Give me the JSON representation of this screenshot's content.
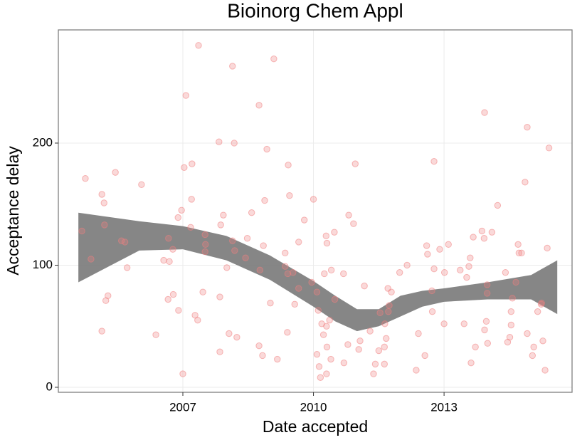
{
  "chart_data": {
    "type": "scatter",
    "title": "Bioinorg Chem Appl",
    "xlabel": "Date accepted",
    "ylabel": "Acceptance delay",
    "xlim": [
      2004.14,
      2015.94
    ],
    "ylim": [
      -4.1,
      292.7
    ],
    "xticks": [
      2007,
      2010,
      2013
    ],
    "yticks": [
      0,
      100,
      200
    ],
    "grid": true,
    "color": "#f08080",
    "x": [
      2004.68,
      2004.76,
      2004.89,
      2005.14,
      2005.19,
      2005.2,
      2005.28,
      2005.23,
      2005.14,
      2005.45,
      2005.59,
      2005.67,
      2005.72,
      2006.05,
      2006.38,
      2006.56,
      2006.67,
      2006.69,
      2006.77,
      2006.78,
      2006.66,
      2006.9,
      2006.89,
      2006.97,
      2007.03,
      2007.07,
      2007.0,
      2007.21,
      2007.2,
      2007.18,
      2007.36,
      2007.28,
      2007.34,
      2007.46,
      2007.51,
      2007.52,
      2007.51,
      2007.83,
      2007.87,
      2007.93,
      2007.85,
      2007.85,
      2008.06,
      2008.14,
      2008.18,
      2008.14,
      2008.19,
      2008.01,
      2008.24,
      2008.44,
      2008.48,
      2008.58,
      2008.75,
      2008.75,
      2008.83,
      2008.93,
      2008.88,
      2008.85,
      2008.77,
      2009.09,
      2009.01,
      2009.17,
      2009.42,
      2009.45,
      2009.35,
      2009.35,
      2009.41,
      2009.53,
      2009.4,
      2009.57,
      2009.66,
      2009.79,
      2009.66,
      2010.0,
      2009.96,
      2010.08,
      2010.11,
      2010.08,
      2010.13,
      2010.16,
      2010.19,
      2010.25,
      2010.29,
      2010.3,
      2010.31,
      2010.23,
      2010.31,
      2010.37,
      2010.41,
      2010.4,
      2010.3,
      2010.48,
      2010.49,
      2010.69,
      2010.7,
      2010.79,
      2010.81,
      2010.92,
      2010.96,
      2011.04,
      2011.07,
      2011.17,
      2011.3,
      2011.38,
      2011.42,
      2011.5,
      2011.53,
      2011.63,
      2011.67,
      2011.71,
      2011.64,
      2011.72,
      2011.79,
      2011.74,
      2011.63,
      2011.98,
      2012.15,
      2012.36,
      2012.41,
      2012.56,
      2012.6,
      2012.62,
      2012.72,
      2012.73,
      2012.77,
      2012.77,
      2012.9,
      2013.0,
      2013.01,
      2013.1,
      2013.37,
      2013.46,
      2013.52,
      2013.57,
      2013.6,
      2013.62,
      2013.67,
      2013.72,
      2013.87,
      2013.92,
      2013.93,
      2013.93,
      2013.97,
      2013.99,
      2013.99,
      2014.0,
      2014.1,
      2014.23,
      2014.41,
      2014.46,
      2014.51,
      2014.54,
      2014.54,
      2014.57,
      2014.65,
      2014.7,
      2014.72,
      2014.78,
      2014.86,
      2014.91,
      2014.91,
      2015.03,
      2015.06,
      2015.15,
      2015.24,
      2015.27,
      2015.32,
      2015.37,
      2015.41,
      2015.23
    ],
    "values": [
      128,
      171,
      105,
      158,
      151,
      133,
      75,
      71,
      46,
      176,
      120,
      119,
      98,
      166,
      43,
      104,
      122,
      103,
      113,
      76,
      72,
      63,
      139,
      145,
      180,
      239,
      11,
      183,
      154,
      131,
      280,
      59,
      55,
      78,
      125,
      117,
      111,
      201,
      133,
      141,
      74,
      29,
      44,
      263,
      200,
      120,
      112,
      98,
      41,
      106,
      122,
      143,
      231,
      34,
      26,
      195,
      153,
      116,
      96,
      269,
      69,
      23,
      182,
      157,
      110,
      99,
      93,
      94,
      45,
      68,
      119,
      137,
      81,
      154,
      86,
      78,
      63,
      27,
      17,
      8,
      52,
      93,
      124,
      50,
      118,
      43,
      33,
      55,
      96,
      23,
      11,
      127,
      72,
      93,
      20,
      35,
      141,
      134,
      183,
      31,
      38,
      83,
      46,
      11,
      19,
      30,
      61,
      33,
      40,
      81,
      52,
      62,
      78,
      67,
      19,
      94,
      100,
      14,
      44,
      26,
      116,
      109,
      79,
      62,
      185,
      97,
      113,
      52,
      94,
      117,
      96,
      52,
      90,
      99,
      106,
      20,
      123,
      33,
      128,
      122,
      225,
      47,
      54,
      77,
      84,
      36,
      127,
      149,
      94,
      37,
      41,
      51,
      62,
      73,
      86,
      117,
      110,
      110,
      168,
      213,
      44,
      26,
      33,
      62,
      69,
      38,
      14,
      114,
      196,
      68
    ],
    "band": {
      "color": "#808080",
      "x": [
        2004.6,
        2006,
        2007,
        2008,
        2009,
        2010,
        2010.5,
        2011,
        2011.5,
        2012,
        2012.5,
        2013,
        2014,
        2015,
        2015.6
      ],
      "upper": [
        143,
        136,
        132,
        124,
        108,
        87,
        75,
        64,
        64,
        75,
        79,
        81,
        86,
        92,
        104
      ],
      "lower": [
        86,
        112,
        113,
        104,
        88,
        66,
        54,
        46,
        50,
        58,
        66,
        70,
        72,
        72,
        60
      ]
    }
  }
}
